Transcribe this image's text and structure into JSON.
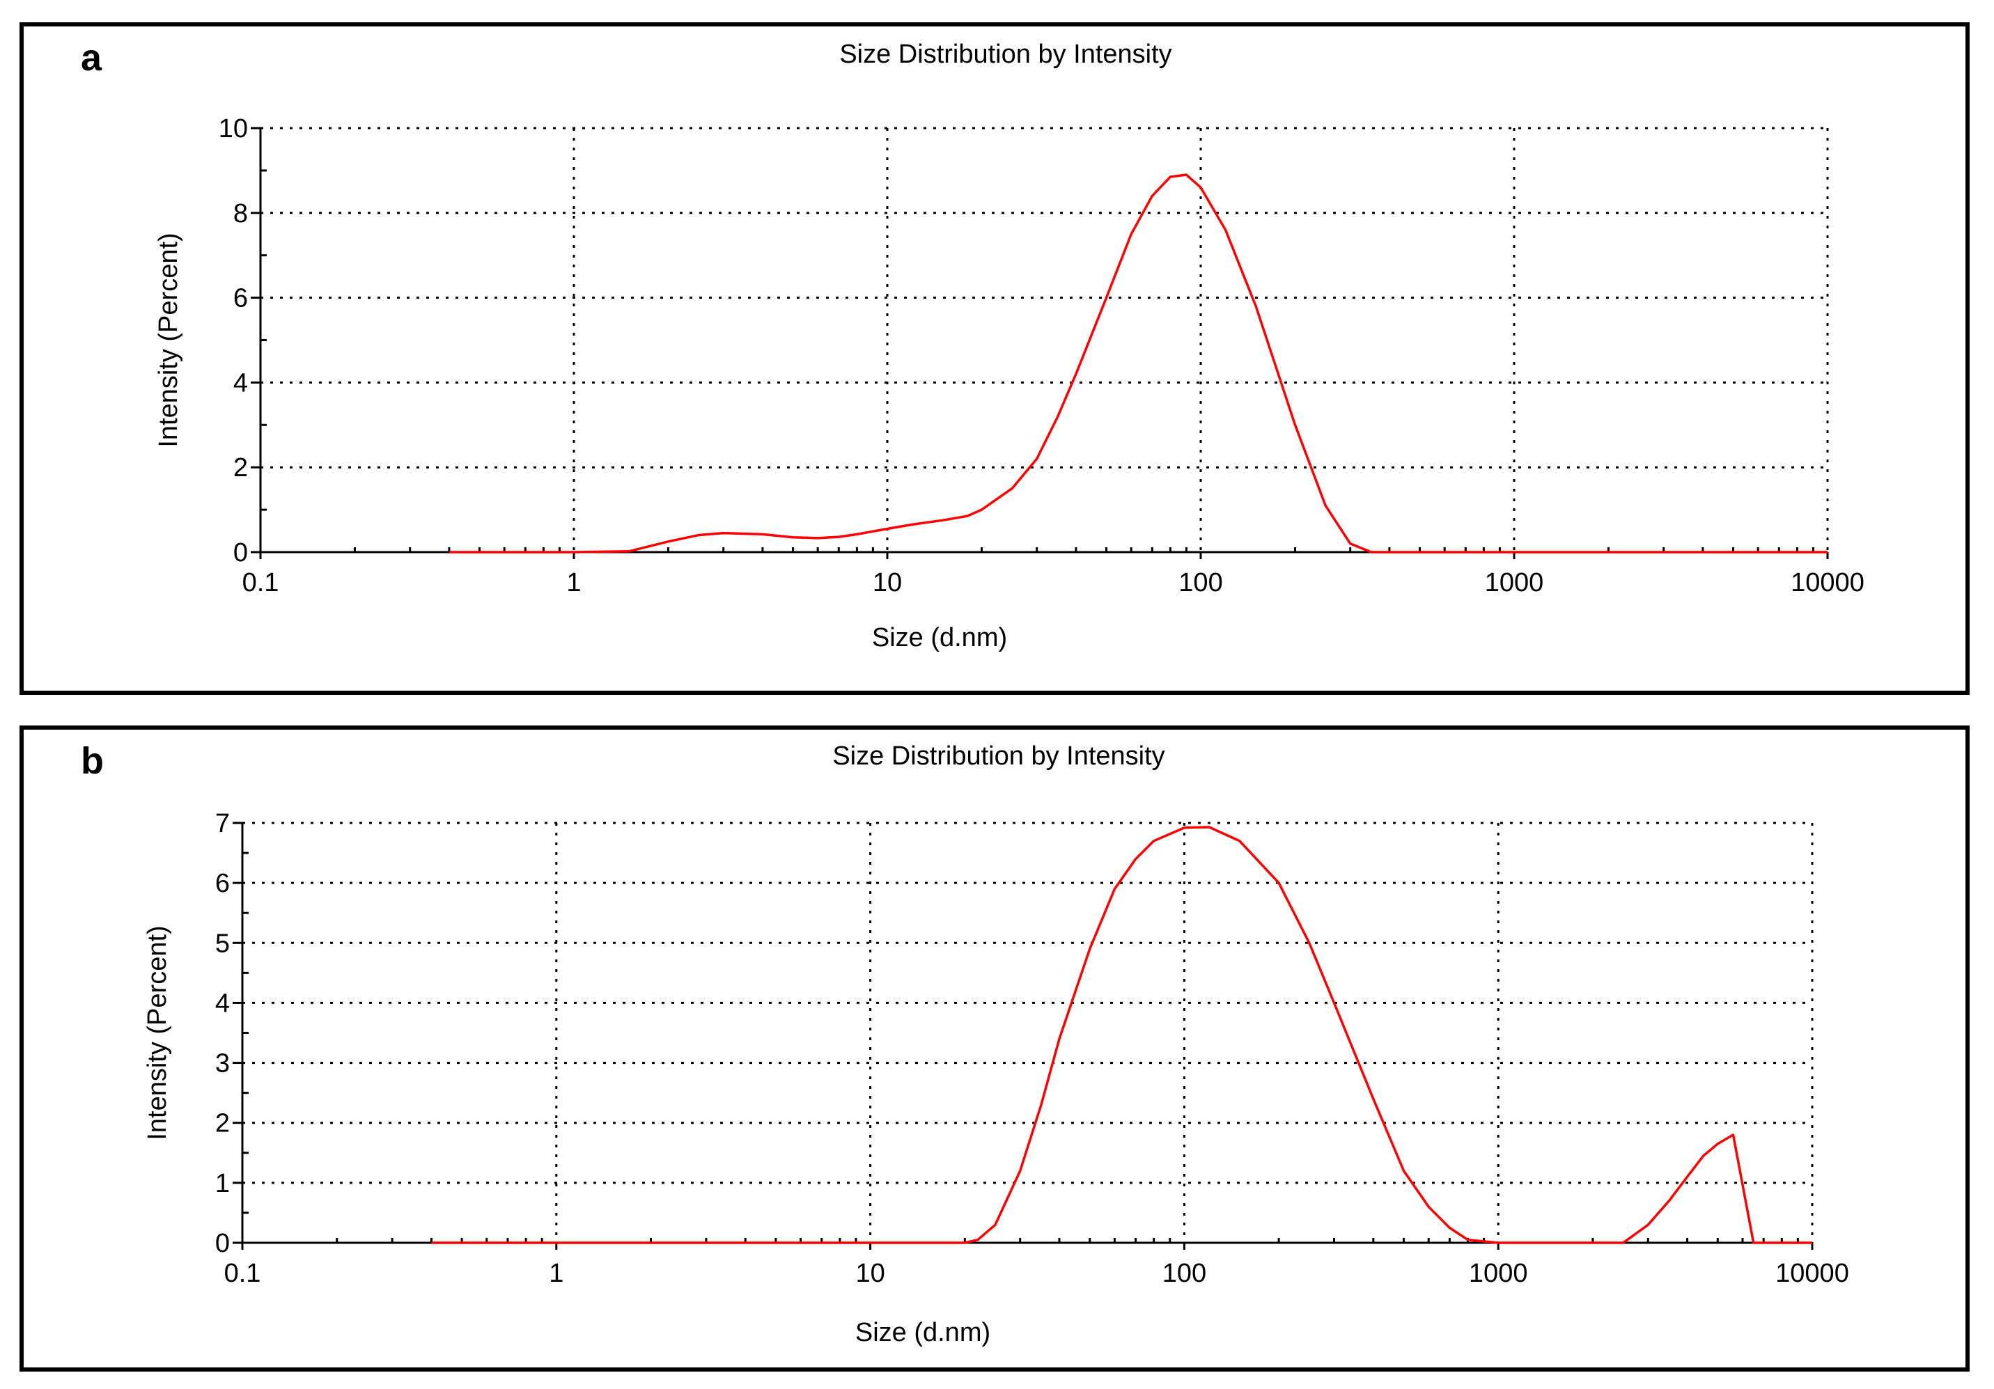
{
  "chart_data": [
    {
      "type": "line",
      "panel_label": "a",
      "title": "Size Distribution by Intensity",
      "xlabel": "Size (d.nm)",
      "ylabel": "Intensity (Percent)",
      "xscale": "log",
      "xlim": [
        0.1,
        10000
      ],
      "ylim": [
        0,
        10
      ],
      "xticks": [
        0.1,
        1,
        10,
        100,
        1000,
        10000
      ],
      "xtick_labels": [
        "0.1",
        "1",
        "10",
        "100",
        "1000",
        "10000"
      ],
      "yticks": [
        0,
        2,
        4,
        6,
        8,
        10
      ],
      "ytick_labels": [
        "0",
        "2",
        "4",
        "6",
        "8",
        "10"
      ],
      "grid": true,
      "series": [
        {
          "name": "Intensity",
          "color": "#ff0000",
          "x": [
            0.4,
            1.0,
            1.5,
            2.0,
            2.5,
            3.0,
            4.0,
            5.0,
            6.0,
            7.0,
            8.0,
            10,
            12,
            15,
            18,
            20,
            25,
            30,
            35,
            40,
            50,
            60,
            70,
            80,
            90,
            100,
            120,
            150,
            200,
            250,
            300,
            350,
            400,
            1000,
            10000
          ],
          "values": [
            0,
            0,
            0.02,
            0.25,
            0.4,
            0.45,
            0.42,
            0.35,
            0.33,
            0.36,
            0.42,
            0.55,
            0.65,
            0.75,
            0.85,
            1.0,
            1.5,
            2.2,
            3.2,
            4.2,
            6.0,
            7.5,
            8.4,
            8.85,
            8.9,
            8.6,
            7.6,
            5.8,
            3.0,
            1.1,
            0.2,
            0.0,
            0,
            0,
            0
          ]
        }
      ]
    },
    {
      "type": "line",
      "panel_label": "b",
      "title": "Size Distribution by Intensity",
      "xlabel": "Size (d.nm)",
      "ylabel": "Intensity (Percent)",
      "xscale": "log",
      "xlim": [
        0.1,
        10000
      ],
      "ylim": [
        0,
        7
      ],
      "xticks": [
        0.1,
        1,
        10,
        100,
        1000,
        10000
      ],
      "xtick_labels": [
        "0.1",
        "1",
        "10",
        "100",
        "1000",
        "10000"
      ],
      "yticks": [
        0,
        1,
        2,
        3,
        4,
        5,
        6,
        7
      ],
      "ytick_labels": [
        "0",
        "1",
        "2",
        "3",
        "4",
        "5",
        "6",
        "7"
      ],
      "grid": true,
      "series": [
        {
          "name": "Intensity",
          "color": "#ff0000",
          "x": [
            0.4,
            20,
            22,
            25,
            30,
            35,
            40,
            50,
            60,
            70,
            80,
            100,
            120,
            150,
            200,
            250,
            300,
            400,
            500,
            600,
            700,
            800,
            1000,
            2500,
            3000,
            3500,
            4000,
            4500,
            5000,
            5600,
            6500,
            10000
          ],
          "values": [
            0,
            0,
            0.05,
            0.3,
            1.2,
            2.3,
            3.4,
            4.9,
            5.9,
            6.4,
            6.7,
            6.92,
            6.93,
            6.7,
            6.0,
            5.0,
            4.0,
            2.4,
            1.2,
            0.6,
            0.25,
            0.05,
            0,
            0,
            0.3,
            0.7,
            1.1,
            1.45,
            1.65,
            1.8,
            0,
            0
          ]
        }
      ]
    }
  ]
}
